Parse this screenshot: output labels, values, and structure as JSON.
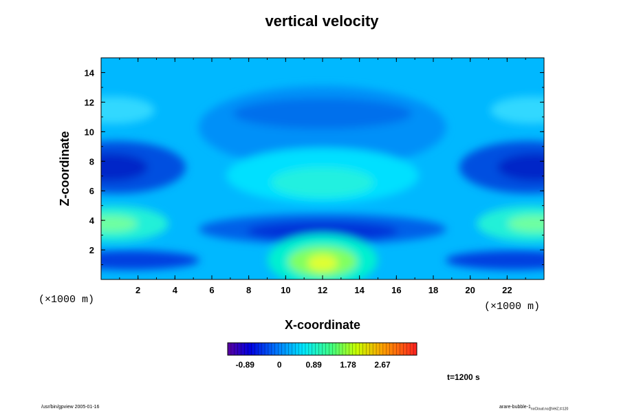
{
  "chart_data": {
    "type": "heatmap",
    "title": "vertical velocity",
    "xlabel": "X-coordinate",
    "ylabel": "Z-coordinate",
    "x_unit": "(×1000 m)",
    "z_unit": "(×1000 m)",
    "xlim": [
      0,
      24
    ],
    "ylim": [
      0,
      15
    ],
    "x_ticks": [
      "2",
      "4",
      "6",
      "8",
      "10",
      "12",
      "14",
      "16",
      "18",
      "20",
      "22"
    ],
    "y_ticks": [
      "2",
      "4",
      "6",
      "8",
      "10",
      "12",
      "14"
    ],
    "colorbar": {
      "range": [
        -1.34,
        3.56
      ],
      "tick_labels": [
        "-0.89",
        "0",
        "0.89",
        "1.78",
        "2.67"
      ],
      "tick_values": [
        -0.89,
        0,
        0.89,
        1.78,
        2.67
      ],
      "colormap": "rainbow (violet-blue-cyan-green-yellow-red)"
    },
    "features": [
      {
        "x": 12,
        "z": 1.1,
        "value": 1.9
      },
      {
        "x": 12,
        "z": 6.5,
        "value": 0.75
      },
      {
        "x": 12,
        "z": 3.3,
        "value": -0.5
      },
      {
        "x": 12,
        "z": 11.2,
        "value": -0.3
      },
      {
        "x": 0.5,
        "z": 7.2,
        "value": -0.8
      },
      {
        "x": 23.5,
        "z": 7.2,
        "value": -0.8
      },
      {
        "x": 0.5,
        "z": 3.8,
        "value": 0.9
      },
      {
        "x": 23.5,
        "z": 3.8,
        "value": 0.9
      },
      {
        "x": 0.5,
        "z": 1.0,
        "value": -0.7
      },
      {
        "x": 23.5,
        "z": 1.0,
        "value": -0.7
      },
      {
        "x": 0.5,
        "z": 11.2,
        "value": 0.4
      },
      {
        "x": 23.5,
        "z": 11.2,
        "value": 0.4
      }
    ],
    "time_label": "t=1200 s"
  },
  "footer": {
    "left": "/usr/bin/gpview 2005-01-16",
    "right_main": "arare-bubble-1",
    "right_sub": "noCloud.nc@VelZ,t=120"
  }
}
